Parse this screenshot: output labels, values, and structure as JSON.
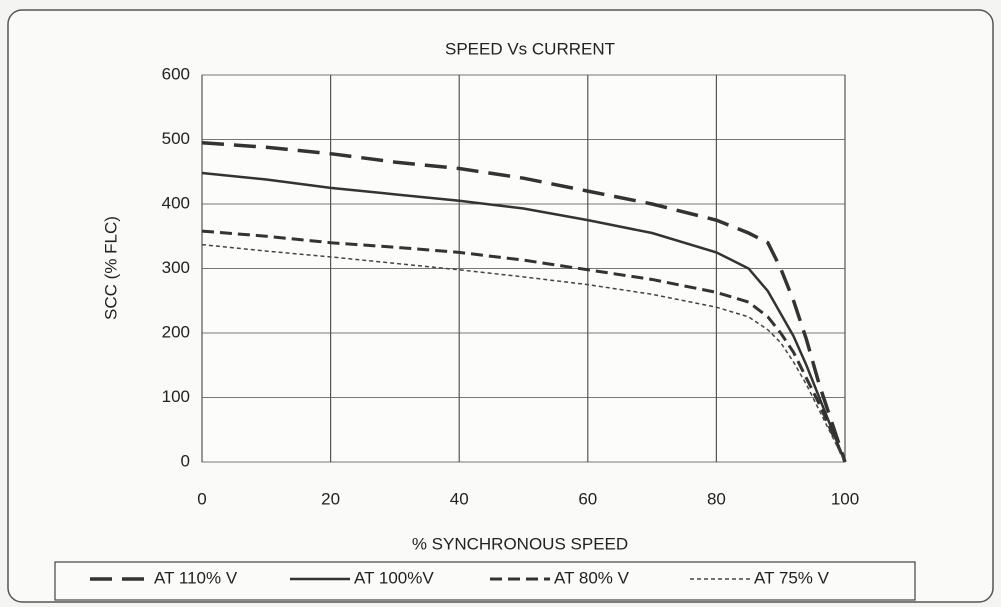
{
  "chart_data": {
    "type": "line",
    "title": "SPEED Vs CURRENT",
    "x_label": "% SYNCHRONOUS SPEED",
    "y_label": "SCC (% FLC)",
    "x": [
      0,
      10,
      20,
      30,
      40,
      50,
      60,
      70,
      80,
      85,
      88,
      90,
      92,
      94,
      96,
      98,
      100
    ],
    "series": [
      {
        "name": "AT 110% V",
        "color": "#333333",
        "style": "longdash",
        "values": [
          495,
          488,
          478,
          465,
          455,
          440,
          420,
          400,
          375,
          355,
          340,
          300,
          250,
          190,
          120,
          60,
          0
        ]
      },
      {
        "name": "AT 100%V",
        "color": "#333333",
        "style": "solid",
        "values": [
          448,
          438,
          425,
          415,
          405,
          393,
          375,
          355,
          325,
          300,
          265,
          230,
          195,
          150,
          100,
          50,
          0
        ]
      },
      {
        "name": "AT 80% V",
        "color": "#333333",
        "style": "dashed",
        "values": [
          358,
          350,
          340,
          333,
          325,
          313,
          298,
          283,
          263,
          248,
          225,
          200,
          170,
          130,
          90,
          45,
          0
        ]
      },
      {
        "name": "AT 75% V",
        "color": "#444444",
        "style": "dotted",
        "values": [
          337,
          327,
          318,
          308,
          298,
          287,
          275,
          260,
          240,
          225,
          205,
          185,
          155,
          120,
          80,
          40,
          0
        ]
      }
    ],
    "xlim": [
      0,
      100
    ],
    "xticks": [
      0,
      20,
      40,
      60,
      80,
      100
    ],
    "ylim": [
      0,
      600
    ],
    "yticks": [
      0,
      100,
      200,
      300,
      400,
      500,
      600
    ],
    "grid": true,
    "legend": "bottom"
  }
}
